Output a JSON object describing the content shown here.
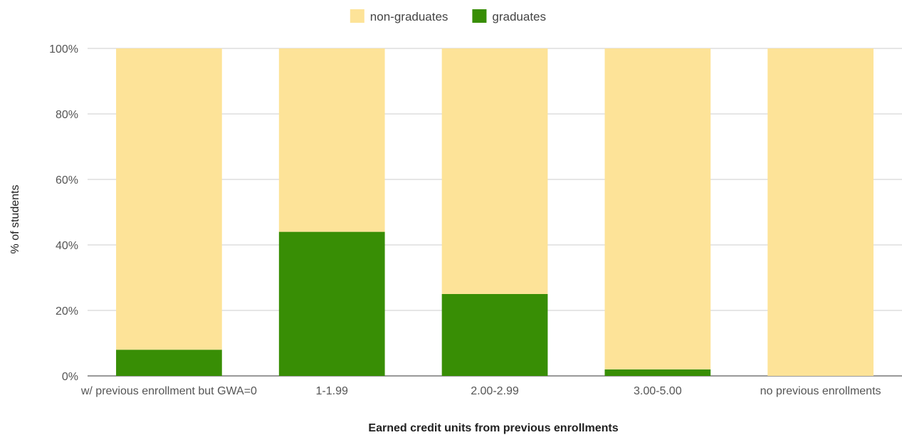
{
  "chart_data": {
    "type": "bar",
    "stacked": true,
    "title": "",
    "xlabel": "Earned credit units from previous enrollments",
    "ylabel": "% of students",
    "categories": [
      "w/ previous enrollment but GWA=0",
      "1-1.99",
      "2.00-2.99",
      "3.00-5.00",
      "no previous enrollments"
    ],
    "series": [
      {
        "name": "graduates",
        "color": "#388e05",
        "values": [
          8,
          44,
          25,
          2,
          0
        ]
      },
      {
        "name": "non-graduates",
        "color": "#fde398",
        "values": [
          92,
          56,
          75,
          98,
          100
        ]
      }
    ],
    "legend_order": [
      "non-graduates",
      "graduates"
    ],
    "legend_position": "top",
    "ylim": [
      0,
      100
    ],
    "y_ticks": [
      0,
      20,
      40,
      60,
      80,
      100
    ],
    "y_tick_labels": [
      "0%",
      "20%",
      "40%",
      "60%",
      "80%",
      "100%"
    ],
    "grid": true
  }
}
